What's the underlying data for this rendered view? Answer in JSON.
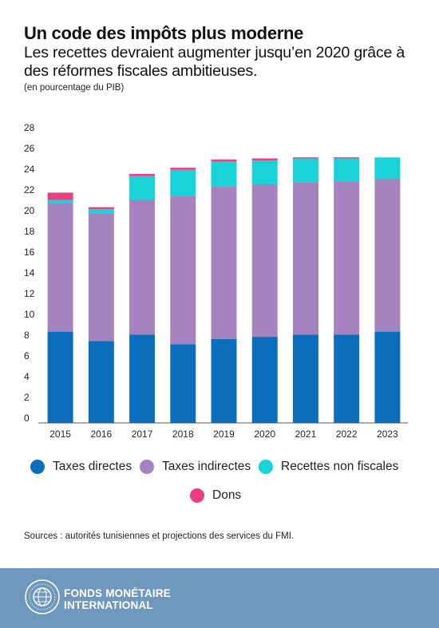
{
  "header": {
    "title": "Un code des impôts plus moderne",
    "subtitle": "Les recettes devraient augmenter jusqu’en 2020 grâce à des réformes fiscales ambitieuses.",
    "unit_note": "(en pourcentage du PIB)"
  },
  "chart_data": {
    "type": "bar",
    "stacked": true,
    "title": "",
    "xlabel": "",
    "ylabel": "",
    "categories": [
      "2015",
      "2016",
      "2017",
      "2018",
      "2019",
      "2020",
      "2021",
      "2022",
      "2023"
    ],
    "y_ticks": [
      0,
      2,
      4,
      6,
      8,
      10,
      12,
      14,
      16,
      18,
      20,
      22,
      24,
      26,
      28
    ],
    "ylim": [
      0,
      28
    ],
    "grid": false,
    "legend_position": "bottom",
    "series": [
      {
        "name": "Taxes directes",
        "color": "#0a6ebd",
        "values": [
          8.8,
          7.9,
          8.5,
          7.6,
          8.1,
          8.3,
          8.5,
          8.5,
          8.8
        ]
      },
      {
        "name": "Taxes indirectes",
        "color": "#a583bf",
        "values": [
          12.4,
          12.3,
          13.0,
          14.3,
          14.7,
          14.7,
          14.7,
          14.8,
          14.7
        ]
      },
      {
        "name": "Recettes non fiscales",
        "color": "#19d3d9",
        "values": [
          0.3,
          0.4,
          2.3,
          2.5,
          2.4,
          2.3,
          2.3,
          2.2,
          2.1
        ]
      },
      {
        "name": "Dons",
        "color": "#eb3f82",
        "values": [
          0.7,
          0.2,
          0.2,
          0.2,
          0.2,
          0.2,
          0.1,
          0.1,
          0.0
        ]
      }
    ]
  },
  "legend": {
    "items": [
      {
        "label": "Taxes directes",
        "color": "#0a6ebd"
      },
      {
        "label": "Taxes indirectes",
        "color": "#a583bf"
      },
      {
        "label": "Recettes non fiscales",
        "color": "#19d3d9"
      },
      {
        "label": "Dons",
        "color": "#eb3f82"
      }
    ]
  },
  "source": "Sources : autorités tunisiennes et projections des services du FMI.",
  "footer": {
    "org_line1": "FONDS MONÉTAIRE",
    "org_line2": "INTERNATIONAL",
    "seal_icon": "imf-seal-icon",
    "background": "#7098bd"
  }
}
